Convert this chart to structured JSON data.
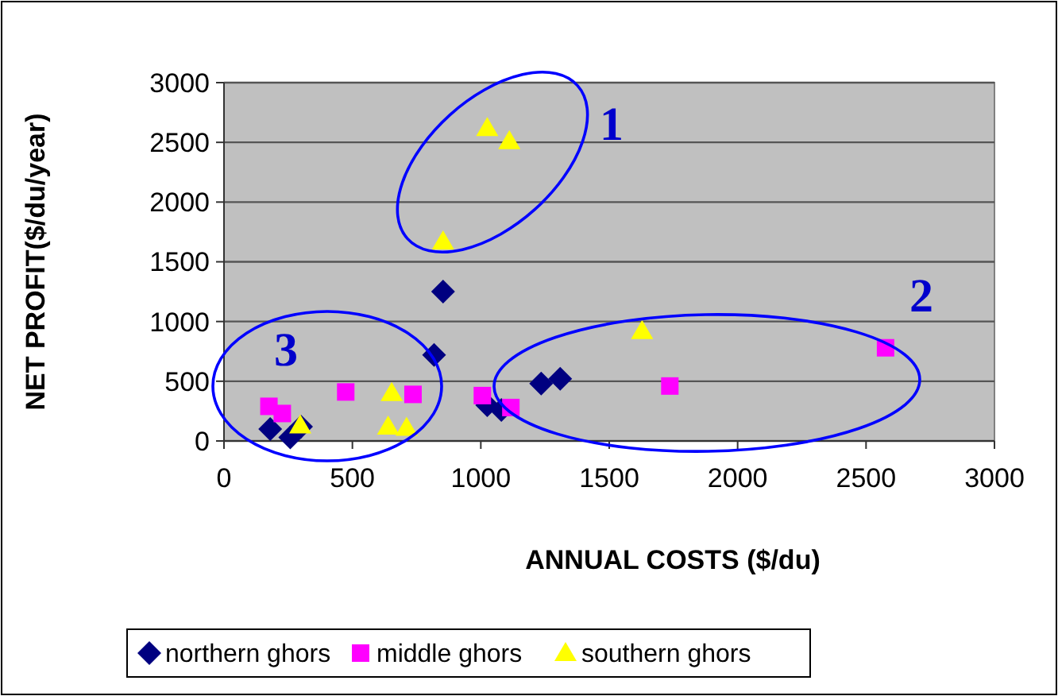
{
  "chart_data": {
    "type": "scatter",
    "xlabel": "ANNUAL COSTS ($/du)",
    "ylabel": "NET PROFIT($/du/year)",
    "xlim": [
      0,
      3000
    ],
    "ylim": [
      0,
      3000
    ],
    "xticks": [
      0,
      500,
      1000,
      1500,
      2000,
      2500,
      3000
    ],
    "yticks": [
      0,
      500,
      1000,
      1500,
      2000,
      2500,
      3000
    ],
    "grid": "y",
    "legend": "bottom",
    "annotations": [
      "1",
      "2",
      "3"
    ],
    "series": [
      {
        "name": "northern ghors",
        "color": "#000080",
        "marker": "diamond",
        "x": [
          180,
          258,
          300,
          818,
          853,
          1025,
          1080,
          1235,
          1309
        ],
        "values": [
          100,
          30,
          120,
          720,
          1250,
          300,
          260,
          480,
          520
        ]
      },
      {
        "name": "middle ghors",
        "color": "#ff00ff",
        "marker": "square",
        "x": [
          175,
          227,
          474,
          736,
          1006,
          1117,
          1736,
          2576
        ],
        "values": [
          290,
          230,
          410,
          390,
          380,
          280,
          460,
          780
        ]
      },
      {
        "name": "southern ghors",
        "color": "#ffff00",
        "marker": "triangle",
        "x": [
          297,
          639,
          711,
          653,
          853,
          1025,
          1111,
          1628
        ],
        "values": [
          130,
          120,
          110,
          400,
          1670,
          2620,
          2510,
          920
        ]
      }
    ]
  }
}
